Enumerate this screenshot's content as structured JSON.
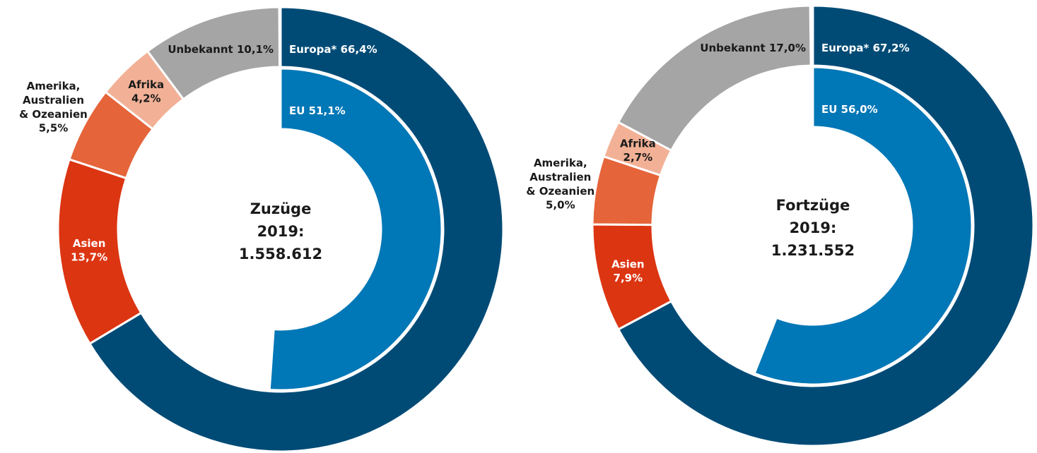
{
  "chart_data": [
    {
      "type": "donut",
      "title": [
        "Zuzüge",
        "2019:"
      ],
      "total": 1558612,
      "total_label": "1.558.612",
      "categories": [
        "Europa*",
        "Asien",
        "Amerika, Australien & Ozeanien",
        "Afrika",
        "Unbekannt"
      ],
      "values": [
        66.4,
        13.7,
        5.5,
        4.2,
        10.1
      ],
      "value_labels": [
        "66,4%",
        "13,7%",
        "5,5%",
        "4,2%",
        "10,1%"
      ],
      "colors": [
        "#004b76",
        "#dc3512",
        "#e5643a",
        "#f2b196",
        "#a5a5a5"
      ],
      "inner": {
        "categories": [
          "EU"
        ],
        "values": [
          51.1
        ],
        "value_labels": [
          "51,1%"
        ],
        "colors": [
          "#0077b6"
        ]
      }
    },
    {
      "type": "donut",
      "title": [
        "Fortzüge",
        "2019:"
      ],
      "total": 1231552,
      "total_label": "1.231.552",
      "categories": [
        "Europa*",
        "Asien",
        "Amerika, Australien & Ozeanien",
        "Afrika",
        "Unbekannt"
      ],
      "values": [
        67.2,
        7.9,
        5.0,
        2.7,
        17.0
      ],
      "value_labels": [
        "67,2%",
        "7,9%",
        "5,0%",
        "2,7%",
        "17,0%"
      ],
      "colors": [
        "#004b76",
        "#dc3512",
        "#e5643a",
        "#f2b196",
        "#a5a5a5"
      ],
      "inner": {
        "categories": [
          "EU"
        ],
        "values": [
          56.0
        ],
        "value_labels": [
          "56,0%"
        ],
        "colors": [
          "#0077b6"
        ]
      }
    }
  ]
}
